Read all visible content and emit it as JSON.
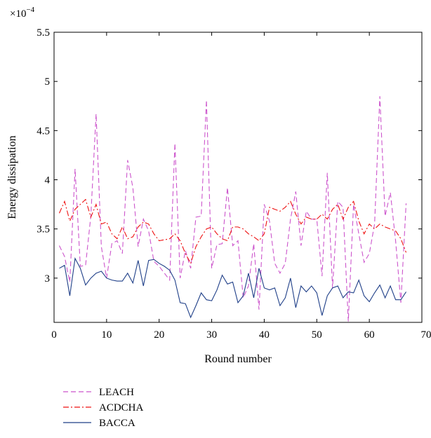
{
  "chart_data": {
    "type": "line",
    "title": "",
    "xlabel": "Round number",
    "ylabel": "Energy dissipation",
    "y_exponent_label": "×10",
    "y_exponent_power": "−4",
    "xlim": [
      0,
      70
    ],
    "ylim": [
      2.55,
      5.5
    ],
    "xticks": [
      0,
      10,
      20,
      30,
      40,
      50,
      60,
      70
    ],
    "yticks": [
      3,
      3.5,
      4,
      4.5,
      5,
      5.5
    ],
    "x": [
      1,
      2,
      3,
      4,
      5,
      6,
      7,
      8,
      9,
      10,
      11,
      12,
      13,
      14,
      15,
      16,
      17,
      18,
      19,
      20,
      21,
      22,
      23,
      24,
      25,
      26,
      27,
      28,
      29,
      30,
      31,
      32,
      33,
      34,
      35,
      36,
      37,
      38,
      39,
      40,
      41,
      42,
      43,
      44,
      45,
      46,
      47,
      48,
      49,
      50,
      51,
      52,
      53,
      54,
      55,
      56,
      57,
      58,
      59,
      60,
      61,
      62,
      63,
      64,
      65,
      66,
      67
    ],
    "grid": false,
    "legend_position": "below-left",
    "series": [
      {
        "name": "LEACH",
        "color": "#cc55cc",
        "dash": "dashed",
        "values": [
          3.33,
          3.22,
          2.96,
          4.11,
          3.12,
          3.13,
          3.63,
          4.67,
          3.32,
          3.0,
          3.35,
          3.38,
          3.25,
          4.2,
          3.92,
          3.32,
          3.6,
          3.48,
          3.17,
          3.12,
          3.05,
          2.98,
          4.37,
          3.0,
          3.28,
          3.1,
          3.62,
          3.63,
          4.81,
          3.1,
          3.34,
          3.35,
          3.92,
          3.33,
          3.38,
          2.8,
          2.92,
          3.35,
          2.68,
          3.75,
          3.58,
          3.15,
          3.05,
          3.15,
          3.6,
          3.88,
          3.33,
          3.68,
          3.6,
          3.6,
          3.02,
          4.07,
          2.9,
          3.78,
          3.72,
          2.56,
          3.75,
          3.45,
          3.16,
          3.25,
          3.55,
          4.85,
          3.63,
          3.87,
          3.38,
          2.75,
          3.76
        ]
      },
      {
        "name": "ACDCHA",
        "color": "#ee1111",
        "dash": "dashdot",
        "values": [
          3.66,
          3.78,
          3.58,
          3.7,
          3.75,
          3.8,
          3.62,
          3.75,
          3.55,
          3.57,
          3.45,
          3.4,
          3.52,
          3.4,
          3.42,
          3.52,
          3.57,
          3.55,
          3.45,
          3.38,
          3.39,
          3.4,
          3.45,
          3.38,
          3.25,
          3.15,
          3.32,
          3.42,
          3.5,
          3.52,
          3.45,
          3.4,
          3.38,
          3.52,
          3.52,
          3.5,
          3.45,
          3.42,
          3.38,
          3.45,
          3.72,
          3.7,
          3.68,
          3.72,
          3.78,
          3.65,
          3.55,
          3.62,
          3.6,
          3.6,
          3.65,
          3.6,
          3.7,
          3.75,
          3.6,
          3.72,
          3.78,
          3.58,
          3.45,
          3.55,
          3.5,
          3.55,
          3.52,
          3.5,
          3.48,
          3.4,
          3.26
        ]
      },
      {
        "name": "BACCA",
        "color": "#1f3f88",
        "dash": "solid",
        "values": [
          3.1,
          3.13,
          2.82,
          3.2,
          3.1,
          2.93,
          3.0,
          3.05,
          3.07,
          3.0,
          2.98,
          2.97,
          2.97,
          3.05,
          2.95,
          3.18,
          2.92,
          3.18,
          3.19,
          3.15,
          3.12,
          3.08,
          2.98,
          2.75,
          2.74,
          2.6,
          2.72,
          2.85,
          2.78,
          2.77,
          2.88,
          3.03,
          2.94,
          2.96,
          2.75,
          2.82,
          3.05,
          2.8,
          3.1,
          2.9,
          2.88,
          2.9,
          2.72,
          2.8,
          3.0,
          2.7,
          2.92,
          2.86,
          2.92,
          2.85,
          2.62,
          2.82,
          2.9,
          2.92,
          2.8,
          2.86,
          2.85,
          2.98,
          2.82,
          2.76,
          2.85,
          2.93,
          2.8,
          2.92,
          2.78,
          2.78,
          2.86
        ]
      }
    ]
  }
}
